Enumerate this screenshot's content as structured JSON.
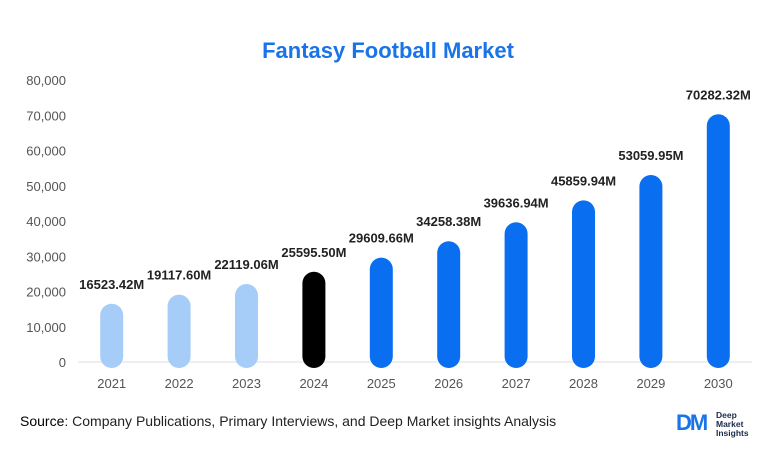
{
  "chart_data": {
    "type": "bar",
    "title": "Fantasy Football Market",
    "categories": [
      "2021",
      "2022",
      "2023",
      "2024",
      "2025",
      "2026",
      "2027",
      "2028",
      "2029",
      "2030"
    ],
    "values": [
      16523.42,
      19117.6,
      22119.06,
      25595.5,
      29609.66,
      34258.38,
      39636.94,
      45859.94,
      53059.95,
      70282.32
    ],
    "data_labels": [
      "16523.42M",
      "19117.60M",
      "22119.06M",
      "25595.50M",
      "29609.66M",
      "34258.38M",
      "39636.94M",
      "45859.94M",
      "53059.95M",
      "70282.32M"
    ],
    "yticks": [
      "0",
      "10,000",
      "20,000",
      "30,000",
      "40,000",
      "50,000",
      "60,000",
      "70,000",
      "80,000"
    ],
    "ylim": [
      0,
      80000
    ],
    "xlabel": "",
    "ylabel": "",
    "grid": false,
    "bar_colors": [
      "#a6cdf7",
      "#a6cdf7",
      "#a6cdf7",
      "#000000",
      "#0a6ef0",
      "#0a6ef0",
      "#0a6ef0",
      "#0a6ef0",
      "#0a6ef0",
      "#0a6ef0"
    ],
    "title_color": "#1a73e8"
  },
  "footer": {
    "source_label": "Source",
    "source_text": ": Company Publications, Primary Interviews, and Deep Market insights Analysis"
  },
  "logo": {
    "mark": "DM",
    "line1": "Deep",
    "line2": "Market",
    "line3": "Insights",
    "mark_color": "#1a73e8"
  }
}
